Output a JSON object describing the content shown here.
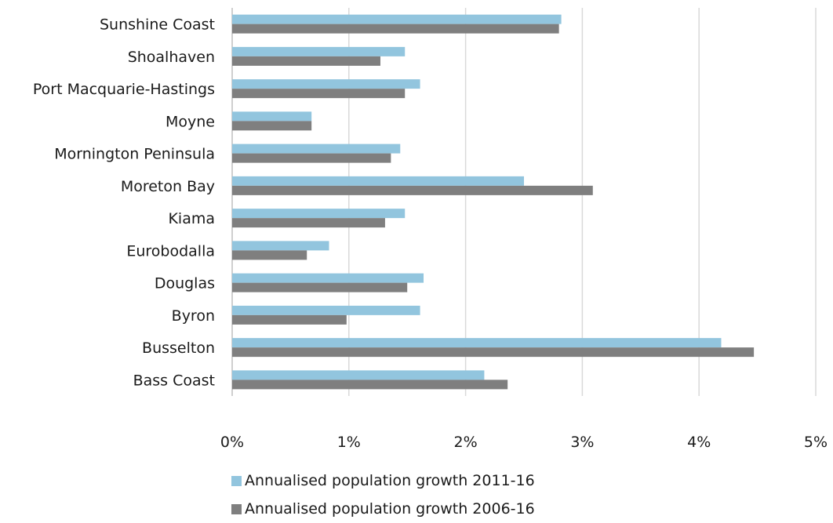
{
  "chart_data": {
    "type": "bar",
    "orientation": "horizontal",
    "categories": [
      "Sunshine Coast",
      "Shoalhaven",
      "Port Macquarie-Hastings",
      "Moyne",
      "Mornington Peninsula",
      "Moreton Bay",
      "Kiama",
      "Eurobodalla",
      "Douglas",
      "Byron",
      "Busselton",
      "Bass Coast"
    ],
    "series": [
      {
        "name": "Annualised population growth 2011-16",
        "color": "#92c5de",
        "values": [
          2.82,
          1.48,
          1.61,
          0.68,
          1.44,
          2.5,
          1.48,
          0.83,
          1.64,
          1.61,
          4.19,
          2.16
        ]
      },
      {
        "name": "Annualised population growth 2006-16",
        "color": "#7f7f7f",
        "values": [
          2.8,
          1.27,
          1.48,
          0.68,
          1.36,
          3.09,
          1.31,
          0.64,
          1.5,
          0.98,
          4.47,
          2.36
        ]
      }
    ],
    "xlim": [
      0,
      5
    ],
    "xticks": [
      "0%",
      "1%",
      "2%",
      "3%",
      "4%",
      "5%"
    ],
    "grid": true,
    "legend_position": "bottom"
  }
}
